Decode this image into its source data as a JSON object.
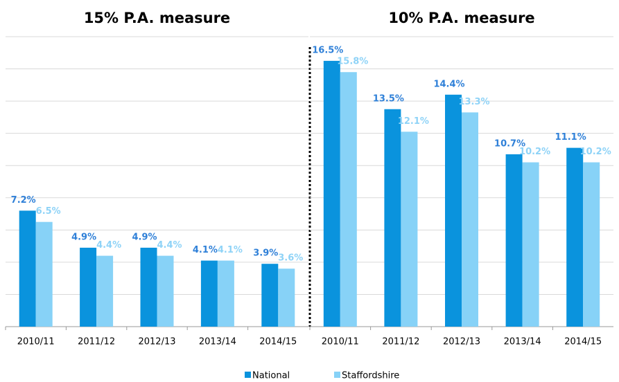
{
  "chart_data": [
    {
      "type": "bar",
      "title": "15% P.A. measure",
      "categories": [
        "2010/11",
        "2011/12",
        "2012/13",
        "2013/14",
        "2014/15"
      ],
      "series": [
        {
          "name": "National",
          "color": "#0a93dd",
          "values": [
            7.2,
            4.9,
            4.9,
            4.1,
            3.9
          ],
          "value_labels": [
            "7.2%",
            "4.9%",
            "4.9%",
            "4.1%",
            "3.9%"
          ]
        },
        {
          "name": "Staffordshire",
          "color": "#87d2f7",
          "values": [
            6.5,
            4.4,
            4.4,
            4.1,
            3.6
          ],
          "value_labels": [
            "6.5%",
            "4.4%",
            "4.4%",
            "4.1%",
            "3.6%"
          ]
        }
      ],
      "ylim": [
        0,
        18
      ],
      "yticks": [
        0,
        2,
        4,
        6,
        8,
        10,
        12,
        14,
        16,
        18
      ],
      "grid": true
    },
    {
      "type": "bar",
      "title": "10% P.A. measure",
      "categories": [
        "2010/11",
        "2011/12",
        "2012/13",
        "2013/14",
        "2014/15"
      ],
      "series": [
        {
          "color": "#0a93dd",
          "values": [
            16.5,
            13.5,
            14.4,
            10.7,
            11.1
          ],
          "value_labels": [
            "16.5%",
            "13.5%",
            "14.4%",
            "10.7%",
            "11.1%"
          ]
        },
        {
          "color": "#87d2f7",
          "values": [
            15.8,
            12.1,
            13.3,
            10.2,
            10.2
          ],
          "value_labels": [
            "15.8%",
            "12.1%",
            "13.3%",
            "10.2%",
            "10.2%"
          ]
        }
      ],
      "ylim": [
        0,
        18
      ],
      "yticks": [
        0,
        2,
        4,
        6,
        8,
        10,
        12,
        14,
        16,
        18
      ],
      "grid": true
    }
  ]
}
